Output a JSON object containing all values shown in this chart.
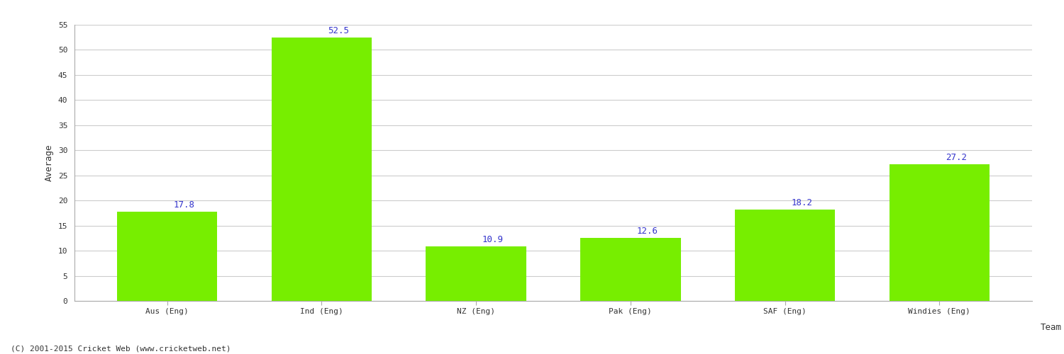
{
  "categories": [
    "Aus (Eng)",
    "Ind (Eng)",
    "NZ (Eng)",
    "Pak (Eng)",
    "SAF (Eng)",
    "Windies (Eng)"
  ],
  "values": [
    17.8,
    52.5,
    10.9,
    12.6,
    18.2,
    27.2
  ],
  "bar_color": "#77ee00",
  "bar_edge_color": "#77ee00",
  "label_color": "#3333cc",
  "xlabel": "Team",
  "ylabel": "Average",
  "ylim": [
    0,
    55
  ],
  "yticks": [
    0,
    5,
    10,
    15,
    20,
    25,
    30,
    35,
    40,
    45,
    50,
    55
  ],
  "grid_color": "#cccccc",
  "background_color": "#ffffff",
  "footer_text": "(C) 2001-2015 Cricket Web (www.cricketweb.net)",
  "label_fontsize": 9,
  "axis_label_fontsize": 9,
  "tick_fontsize": 8,
  "footer_fontsize": 8,
  "bar_width": 0.65
}
